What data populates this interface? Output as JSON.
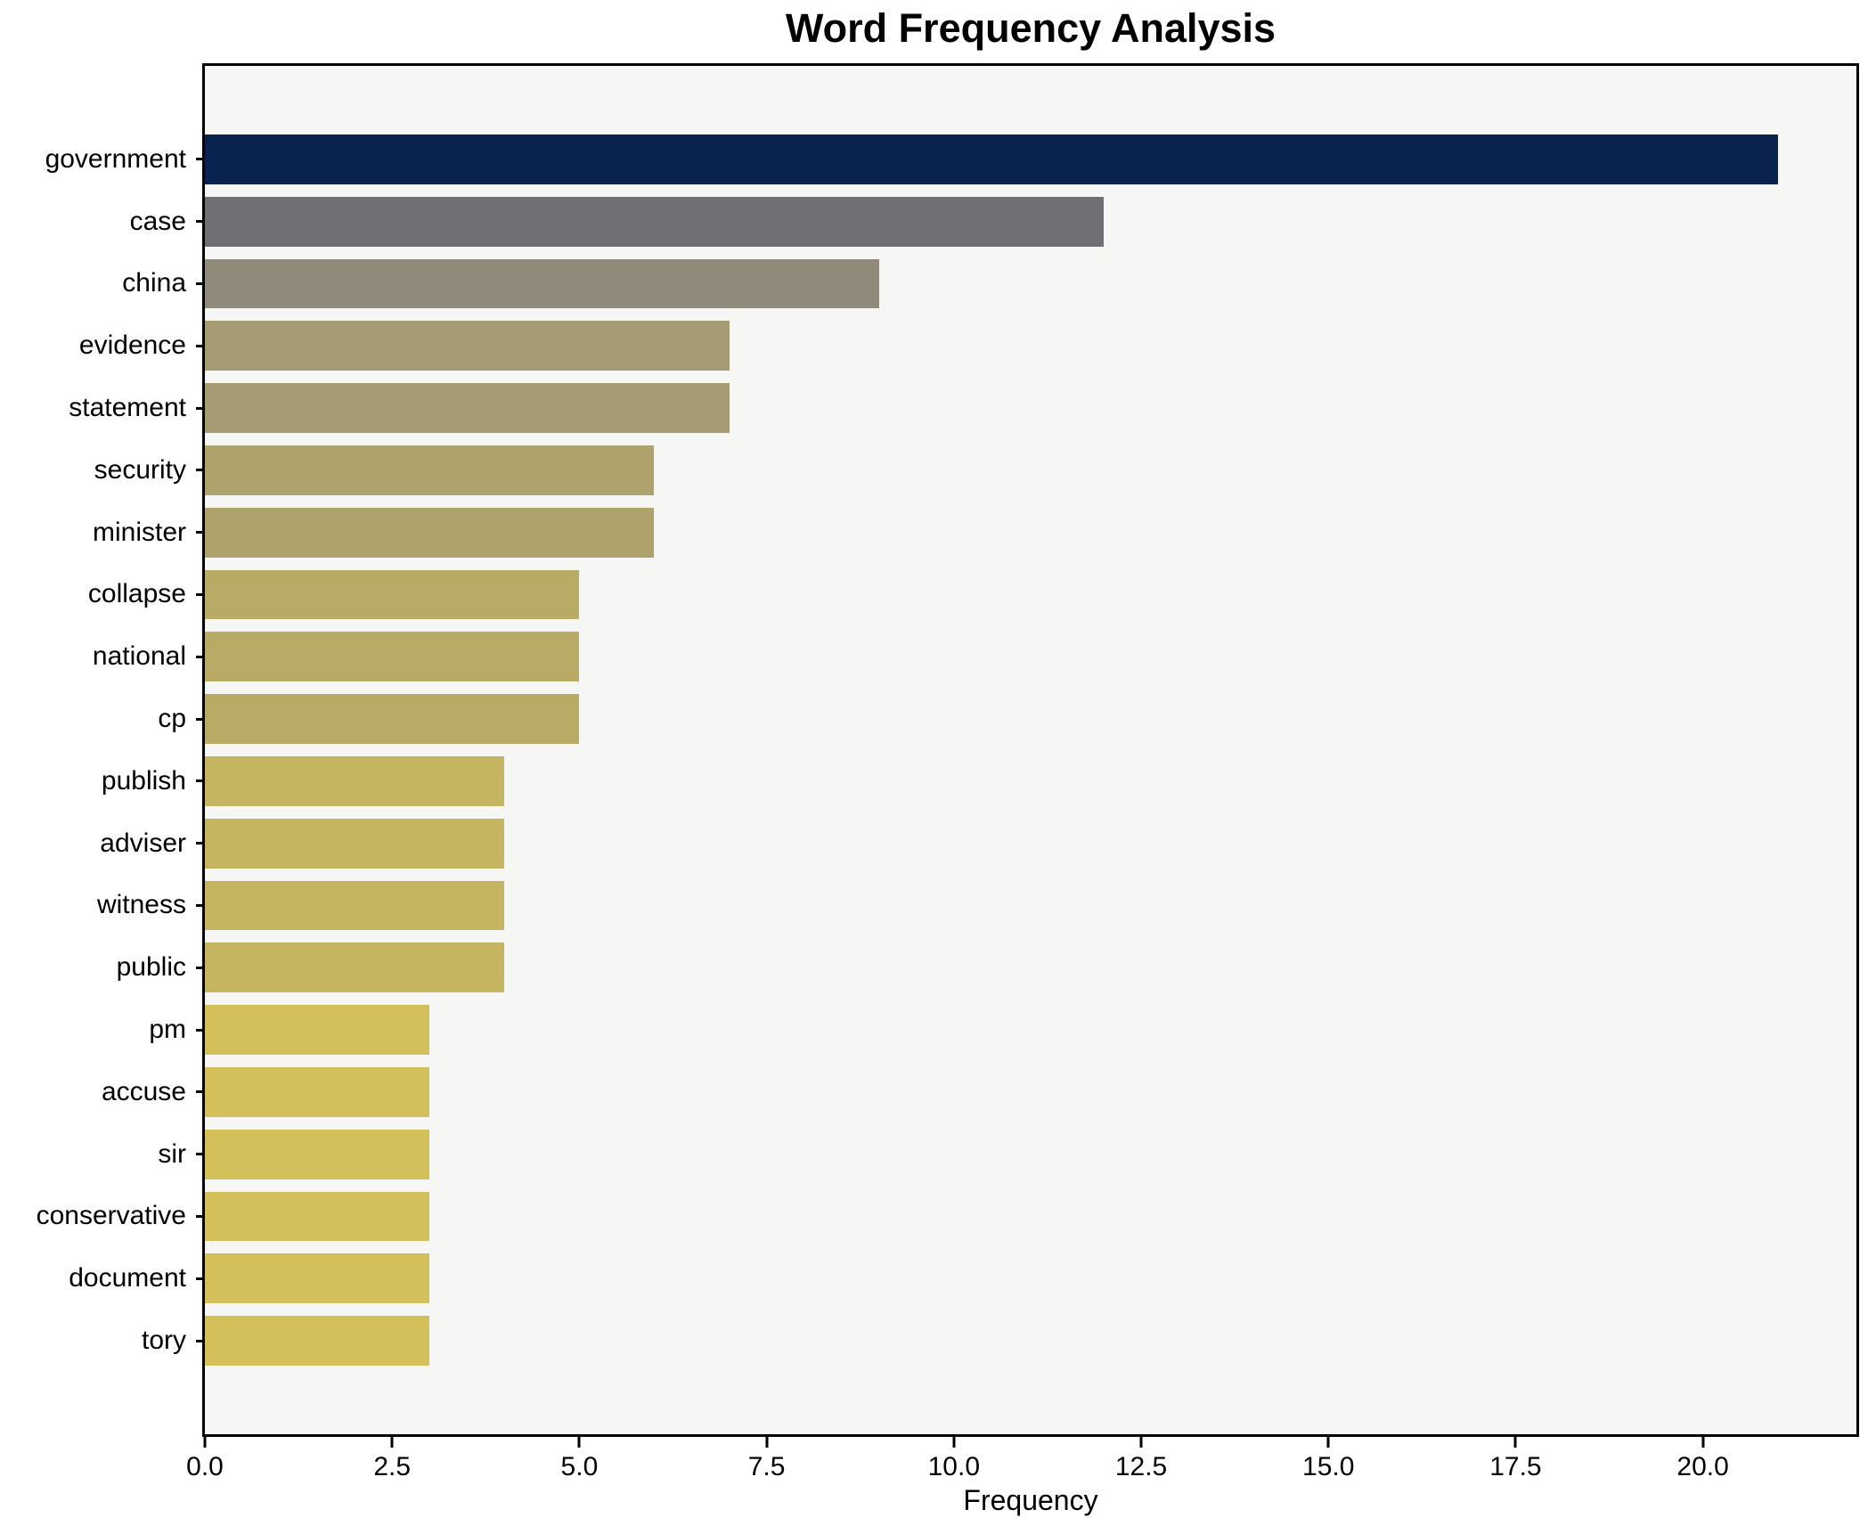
{
  "chart_data": {
    "type": "bar",
    "orientation": "horizontal",
    "title": "Word Frequency Analysis",
    "xlabel": "Frequency",
    "ylabel": "",
    "categories": [
      "government",
      "case",
      "china",
      "evidence",
      "statement",
      "security",
      "minister",
      "collapse",
      "national",
      "cp",
      "publish",
      "adviser",
      "witness",
      "public",
      "pm",
      "accuse",
      "sir",
      "conservative",
      "document",
      "tory"
    ],
    "values": [
      21,
      12,
      9,
      7,
      7,
      6,
      6,
      5,
      5,
      5,
      4,
      4,
      4,
      4,
      3,
      3,
      3,
      3,
      3,
      3
    ],
    "bar_colors": [
      "#0a234e",
      "#6e7073",
      "#908a7a",
      "#a59c74",
      "#a59c74",
      "#aea36d",
      "#aea36d",
      "#b9ab66",
      "#b9ab66",
      "#b9ab66",
      "#c6b560",
      "#c6b560",
      "#c6b560",
      "#c6b560",
      "#d3c05a",
      "#d3c05a",
      "#d3c05a",
      "#d3c05a",
      "#d3c05a",
      "#d3c05a"
    ],
    "xlim": [
      0,
      22.05
    ],
    "xticks": [
      0.0,
      2.5,
      5.0,
      7.5,
      10.0,
      12.5,
      15.0,
      17.5,
      20.0
    ],
    "xtick_labels": [
      "0.0",
      "2.5",
      "5.0",
      "7.5",
      "10.0",
      "12.5",
      "15.0",
      "17.5",
      "20.0"
    ],
    "grid": false,
    "legend": null,
    "plot_background": "#f6f6f5",
    "figure_background": "#ffffff",
    "spine_color": "#000000"
  }
}
